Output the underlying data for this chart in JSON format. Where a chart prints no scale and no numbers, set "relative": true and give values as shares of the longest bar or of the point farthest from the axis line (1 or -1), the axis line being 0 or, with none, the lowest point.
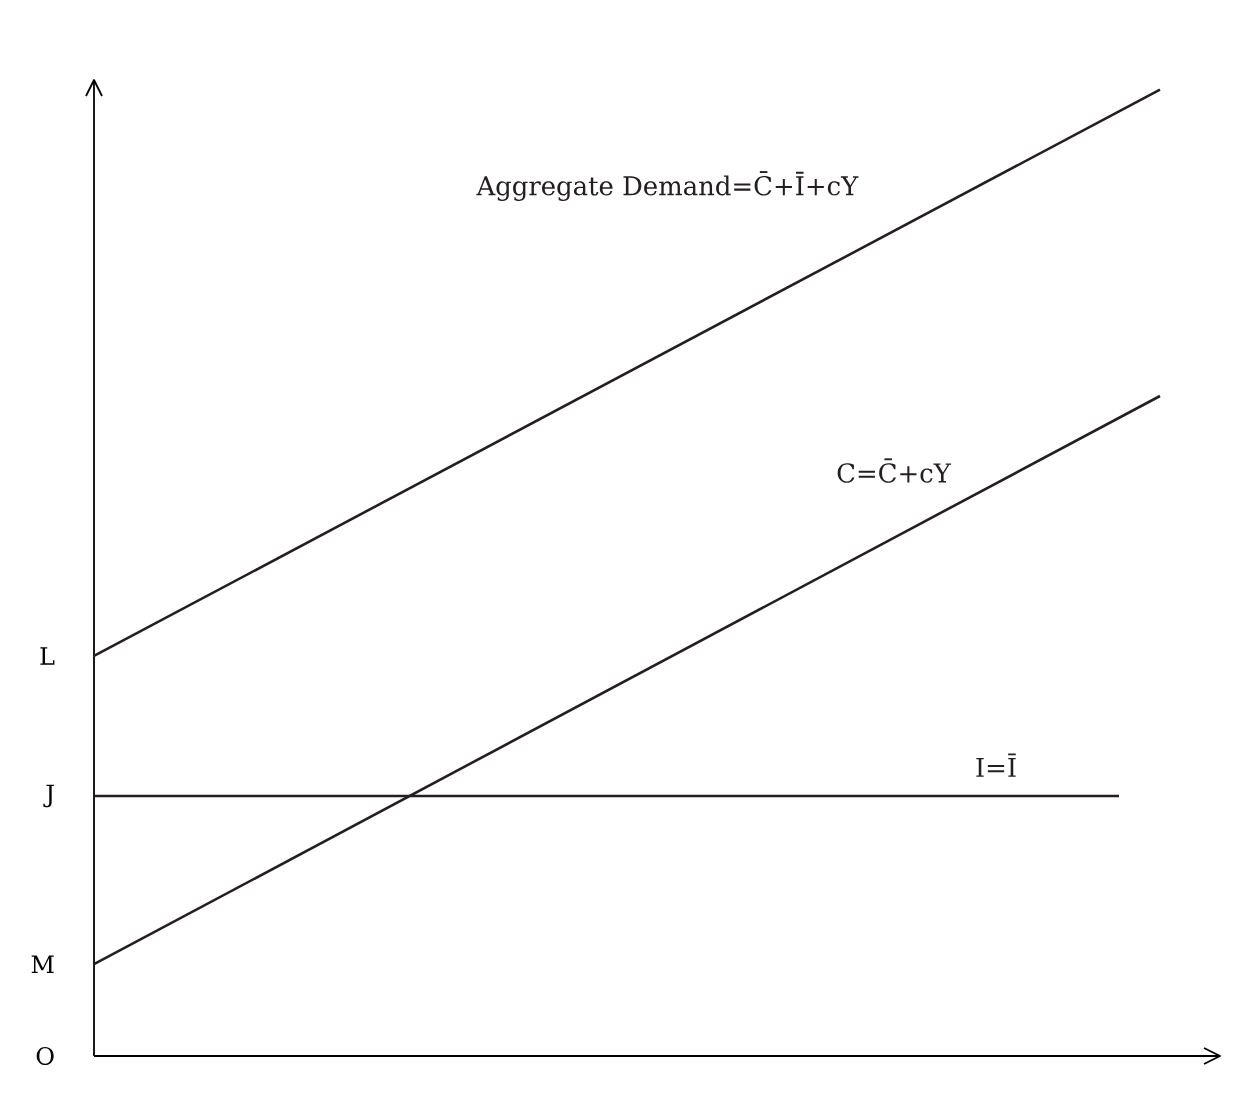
{
  "chart_data": {
    "type": "line",
    "relative": true,
    "categories": [
      null,
      null,
      null,
      null,
      null,
      null,
      null,
      null,
      null,
      null,
      null,
      null,
      null,
      null,
      null,
      null,
      null,
      null,
      null,
      null,
      null,
      null,
      null,
      null,
      null,
      null,
      null
    ],
    "series": [
      {
        "name": "Aggregate Demand=C̄+Ī+cY",
        "color": "#231f20",
        "values": [
          0.414,
          null,
          null,
          null,
          null,
          null,
          null,
          null,
          null,
          null,
          null,
          null,
          null,
          null,
          null,
          null,
          null,
          null,
          null,
          null,
          null,
          null,
          null,
          null,
          null,
          null,
          1
        ]
      },
      {
        "name": "C=C̄+cY",
        "color": "#231f20",
        "values": [
          0.095,
          null,
          null,
          null,
          null,
          null,
          null,
          null,
          null,
          null,
          null,
          null,
          null,
          null,
          null,
          null,
          null,
          null,
          null,
          null,
          null,
          null,
          null,
          null,
          null,
          null,
          0.683
        ]
      },
      {
        "name": "I=Ī",
        "color": "#231f20",
        "values": [
          0.269,
          null,
          null,
          null,
          null,
          null,
          null,
          null,
          null,
          null,
          null,
          null,
          null,
          null,
          null,
          null,
          null,
          null,
          null,
          null,
          null,
          null,
          null,
          null,
          null,
          0.269,
          null
        ]
      }
    ],
    "annotations": [
      "L",
      "J",
      "M",
      "O"
    ]
  }
}
